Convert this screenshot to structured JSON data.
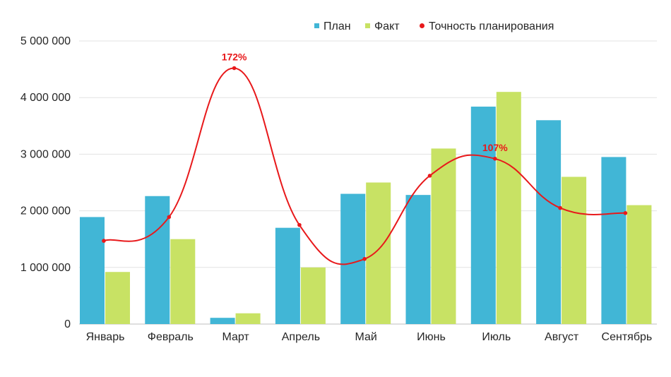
{
  "chart_data": {
    "type": "bar",
    "categories": [
      "Январь",
      "Февраль",
      "Март",
      "Апрель",
      "Май",
      "Июнь",
      "Июль",
      "Август",
      "Сентябрь"
    ],
    "y_ticks": [
      "0",
      "1 000 000",
      "2 000 000",
      "3 000 000",
      "4 000 000",
      "5 000 000"
    ],
    "ylim": [
      0,
      5000000
    ],
    "grid": true,
    "legend_position": "top",
    "series": [
      {
        "name": "План",
        "kind": "bar",
        "color": "#41b6d6",
        "values": [
          1890000,
          2260000,
          110000,
          1700000,
          2300000,
          2280000,
          3840000,
          3600000,
          2950000
        ]
      },
      {
        "name": "Факт",
        "kind": "bar",
        "color": "#c8e264",
        "values": [
          920000,
          1500000,
          190000,
          1000000,
          2500000,
          3100000,
          4100000,
          2600000,
          2100000
        ]
      },
      {
        "name": "Точность планирования",
        "kind": "line",
        "color": "#e8191b",
        "values": [
          1470000,
          1890000,
          4520000,
          1750000,
          1150000,
          2620000,
          2920000,
          2050000,
          1960000
        ],
        "data_labels": [
          {
            "category": "Март",
            "text": "172%"
          },
          {
            "category": "Июль",
            "text": "107%"
          }
        ]
      }
    ]
  }
}
